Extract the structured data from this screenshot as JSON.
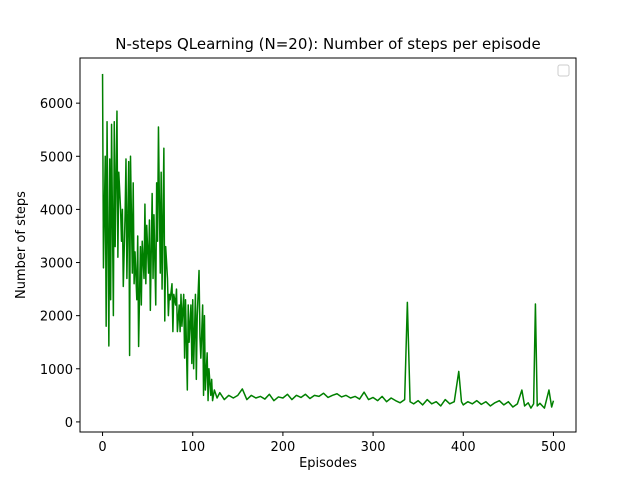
{
  "chart_data": {
    "type": "line",
    "title": "N-steps QLearning (N=20): Number of steps per episode",
    "x_label": "Episodes",
    "y_label": "Number of steps",
    "xlim": [
      -25,
      525
    ],
    "xticks": [
      0,
      100,
      200,
      300,
      400,
      500
    ],
    "ylim": [
      -190,
      6850
    ],
    "yticks": [
      0,
      1000,
      2000,
      3000,
      4000,
      5000,
      6000
    ],
    "x": [
      0,
      1,
      3,
      4,
      5,
      7,
      8,
      9,
      10,
      12,
      13,
      14,
      16,
      17,
      18,
      20,
      21,
      22,
      23,
      25,
      26,
      27,
      29,
      30,
      31,
      33,
      34,
      35,
      36,
      38,
      39,
      40,
      42,
      43,
      44,
      46,
      47,
      48,
      49,
      51,
      52,
      53,
      55,
      56,
      57,
      59,
      60,
      61,
      62,
      64,
      65,
      66,
      68,
      69,
      70,
      72,
      73,
      74,
      75,
      77,
      78,
      79,
      81,
      82,
      83,
      85,
      86,
      87,
      88,
      90,
      91,
      92,
      94,
      95,
      96,
      98,
      99,
      100,
      101,
      103,
      104,
      105,
      107,
      108,
      109,
      111,
      112,
      113,
      114,
      116,
      117,
      118,
      120,
      121,
      122,
      124,
      127,
      130,
      135,
      140,
      145,
      150,
      155,
      160,
      165,
      170,
      175,
      180,
      185,
      190,
      195,
      200,
      205,
      210,
      215,
      220,
      225,
      230,
      235,
      240,
      245,
      250,
      255,
      260,
      265,
      270,
      275,
      280,
      285,
      290,
      295,
      300,
      305,
      310,
      315,
      320,
      325,
      330,
      335,
      338,
      341,
      345,
      350,
      355,
      360,
      365,
      370,
      375,
      380,
      385,
      390,
      395,
      398,
      400,
      405,
      410,
      415,
      420,
      425,
      430,
      435,
      440,
      445,
      450,
      455,
      460,
      465,
      468,
      472,
      475,
      478,
      480,
      482,
      485,
      490,
      495,
      498,
      500
    ],
    "series": [
      {
        "color": "#008000",
        "values": [
          6550,
          2900,
          5000,
          1800,
          5650,
          1430,
          4950,
          2300,
          5600,
          2000,
          5650,
          3300,
          5850,
          3100,
          4700,
          4000,
          3400,
          4000,
          2550,
          3900,
          4950,
          2700,
          4900,
          1250,
          5000,
          2800,
          4500,
          2600,
          3200,
          2300,
          3500,
          1420,
          3300,
          2200,
          3400,
          2700,
          4100,
          2600,
          3700,
          2800,
          3800,
          2100,
          4300,
          2700,
          3900,
          2200,
          4500,
          3400,
          5550,
          2800,
          4700,
          2500,
          5150,
          1900,
          3300,
          2700,
          2000,
          2400,
          2300,
          2600,
          1700,
          2400,
          2200,
          2500,
          1700,
          2200,
          1700,
          2400,
          1800,
          2400,
          1200,
          2300,
          600,
          2200,
          1500,
          2200,
          1100,
          2300,
          1000,
          2400,
          800,
          2000,
          2850,
          1600,
          1200,
          2200,
          500,
          2000,
          600,
          1300,
          400,
          1000,
          500,
          800,
          400,
          600,
          450,
          550,
          420,
          500,
          450,
          500,
          620,
          420,
          500,
          450,
          480,
          430,
          520,
          400,
          470,
          450,
          520,
          420,
          500,
          460,
          520,
          440,
          500,
          480,
          540,
          460,
          500,
          530,
          470,
          500,
          450,
          480,
          430,
          560,
          420,
          460,
          400,
          480,
          380,
          450,
          400,
          360,
          420,
          2250,
          380,
          340,
          400,
          320,
          420,
          340,
          380,
          300,
          420,
          340,
          380,
          950,
          380,
          320,
          380,
          340,
          400,
          330,
          380,
          300,
          360,
          400,
          320,
          380,
          280,
          340,
          600,
          300,
          360,
          260,
          340,
          2220,
          300,
          350,
          260,
          600,
          280,
          400
        ]
      }
    ]
  }
}
